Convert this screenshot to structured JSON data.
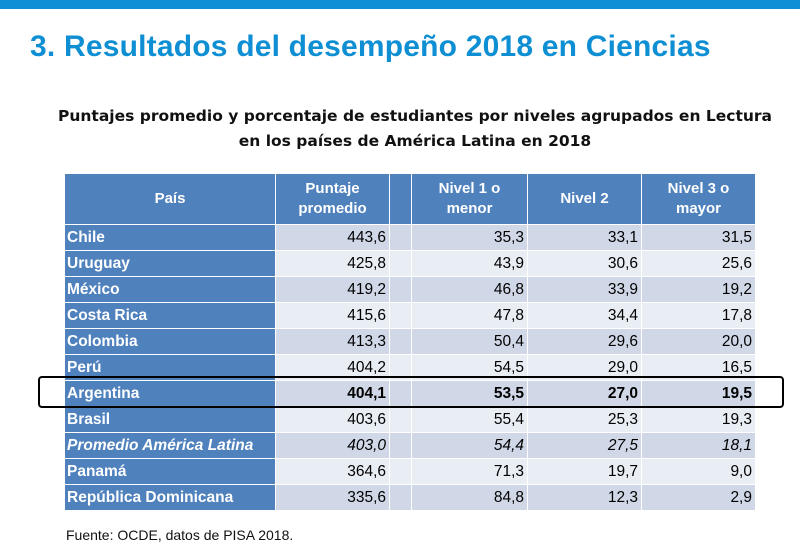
{
  "title": "3. Resultados del desempeño 2018 en Ciencias",
  "caption": {
    "line1": "Puntajes promedio y porcentaje de estudiantes por niveles agrupados en Lectura",
    "line2": "en los países de América Latina en 2018"
  },
  "table": {
    "headers": {
      "country": "País",
      "score_line1": "Puntaje",
      "score_line2": "promedio",
      "level1_line1": "Nivel 1 o",
      "level1_line2": "menor",
      "level2": "Nivel 2",
      "level3_line1": "Nivel 3 o",
      "level3_line2": "mayor"
    },
    "rows": [
      {
        "country": "Chile",
        "score": "443,6",
        "level1": "35,3",
        "level2": "33,1",
        "level3": "31,5"
      },
      {
        "country": "Uruguay",
        "score": "425,8",
        "level1": "43,9",
        "level2": "30,6",
        "level3": "25,6"
      },
      {
        "country": "México",
        "score": "419,2",
        "level1": "46,8",
        "level2": "33,9",
        "level3": "19,2"
      },
      {
        "country": "Costa Rica",
        "score": "415,6",
        "level1": "47,8",
        "level2": "34,4",
        "level3": "17,8"
      },
      {
        "country": "Colombia",
        "score": "413,3",
        "level1": "50,4",
        "level2": "29,6",
        "level3": "20,0"
      },
      {
        "country": "Perú",
        "score": "404,2",
        "level1": "54,5",
        "level2": "29,0",
        "level3": "16,5"
      },
      {
        "country": "Argentina",
        "score": "404,1",
        "level1": "53,5",
        "level2": "27,0",
        "level3": "19,5"
      },
      {
        "country": "Brasil",
        "score": "403,6",
        "level1": "55,4",
        "level2": "25,3",
        "level3": "19,3"
      },
      {
        "country": "Promedio América Latina",
        "score": "403,0",
        "level1": "54,4",
        "level2": "27,5",
        "level3": "18,1"
      },
      {
        "country": "Panamá",
        "score": "364,6",
        "level1": "71,3",
        "level2": "19,7",
        "level3": "9,0"
      },
      {
        "country": "República Dominicana",
        "score": "335,6",
        "level1": "84,8",
        "level2": "12,3",
        "level3": "2,9"
      }
    ]
  },
  "source": "Fuente: OCDE, datos de PISA 2018.",
  "colors": {
    "title": "#0e8fd3",
    "top_bar": "#0f8fd6",
    "header_bg": "#4f81bd",
    "row_dark": "#d0d8e8",
    "row_light": "#e9edf4"
  }
}
